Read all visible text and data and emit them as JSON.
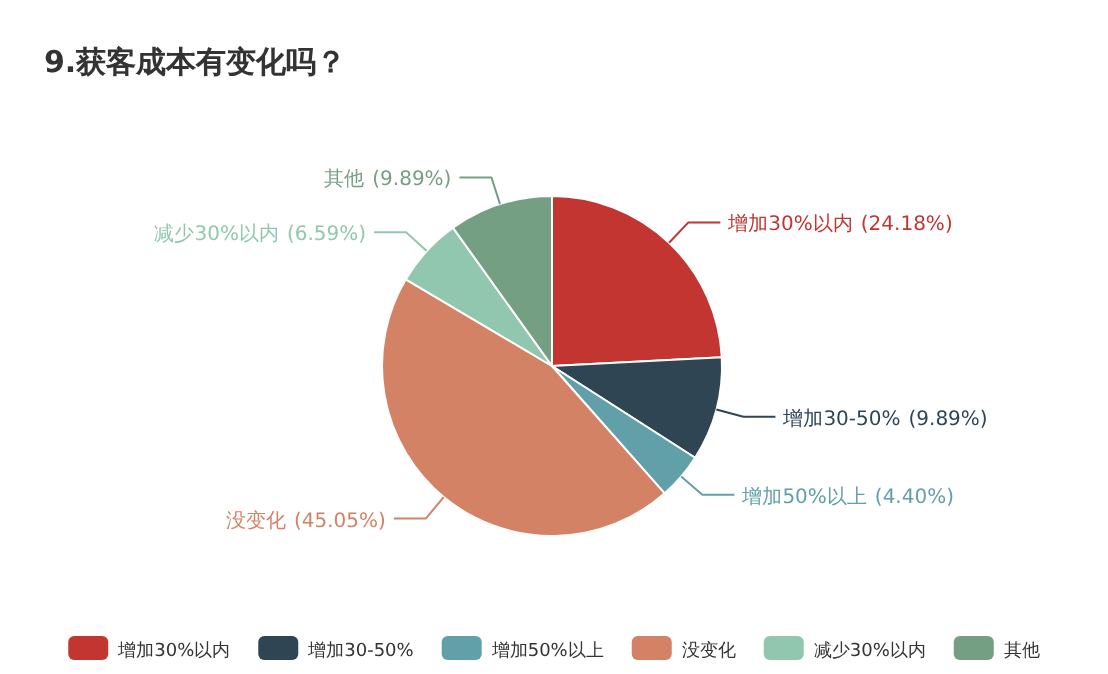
{
  "chart_data": {
    "type": "pie",
    "title": "9.获客成本有变化吗？",
    "categories": [
      "增加30%以内",
      "增加30-50%",
      "增加50%以上",
      "没变化",
      "减少30%以内",
      "其他"
    ],
    "values": [
      24.18,
      9.89,
      4.4,
      45.05,
      6.59,
      9.89
    ],
    "colors": [
      "#c23531",
      "#2f4554",
      "#61a0a8",
      "#d48265",
      "#91c7ae",
      "#749f83"
    ],
    "value_labels": [
      "(24.18%)",
      "(9.89%)",
      "(4.40%)",
      "(45.05%)",
      "(6.59%)",
      "(9.89%)"
    ],
    "legend": "bottom"
  }
}
